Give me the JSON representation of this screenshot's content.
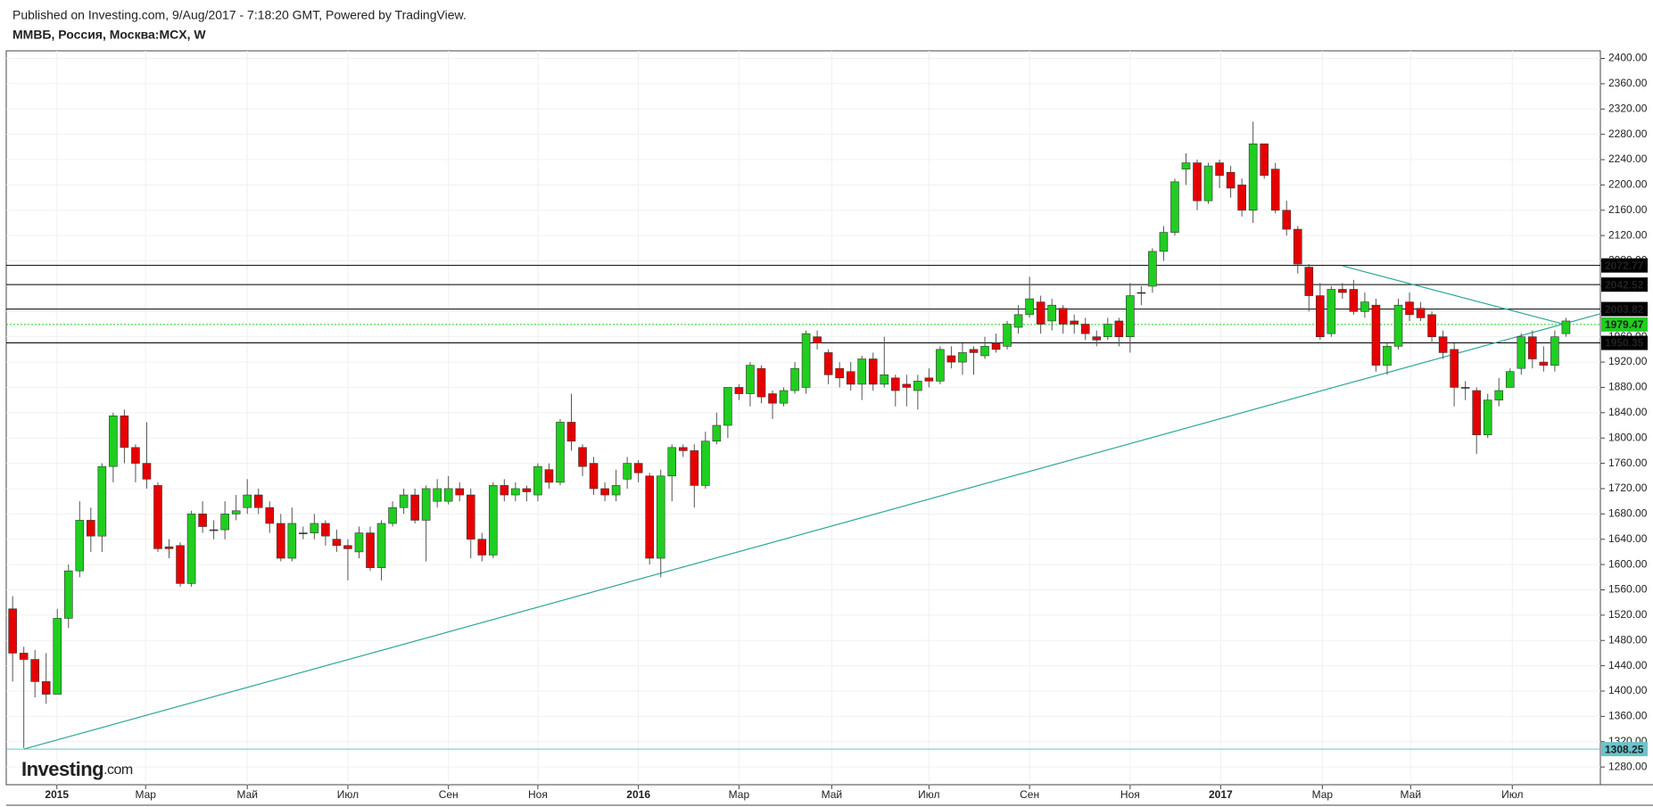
{
  "header": {
    "published": "Published on Investing.com, 9/Aug/2017 - 7:18:20 GMT, Powered by TradingView.",
    "symbol": "ММВБ, Россия, Москва:MCX, W"
  },
  "logo": {
    "name": "Investing",
    "suffix": ".com"
  },
  "chart_data": {
    "type": "candlestick",
    "up_color": "#1fce1f",
    "down_color": "#e60000",
    "grid": true,
    "open": [
      1530,
      1460,
      1450,
      1415,
      1395,
      1515,
      1590,
      1670,
      1645,
      1755,
      1835,
      1785,
      1760,
      1725,
      1628,
      1630,
      1570,
      1680,
      1655,
      1655,
      1680,
      1690,
      1710,
      1690,
      1665,
      1610,
      1650,
      1650,
      1665,
      1640,
      1630,
      1620,
      1650,
      1595,
      1665,
      1690,
      1710,
      1670,
      1700,
      1700,
      1720,
      1710,
      1640,
      1615,
      1725,
      1710,
      1720,
      1710,
      1750,
      1730,
      1825,
      1785,
      1760,
      1720,
      1710,
      1735,
      1760,
      1740,
      1610,
      1740,
      1785,
      1780,
      1725,
      1795,
      1820,
      1880,
      1870,
      1910,
      1870,
      1855,
      1875,
      1880,
      1960,
      1935,
      1910,
      1905,
      1885,
      1925,
      1885,
      1895,
      1885,
      1875,
      1895,
      1890,
      1930,
      1920,
      1940,
      1930,
      1950,
      1945,
      1975,
      1995,
      2015,
      1985,
      2005,
      1985,
      1980,
      1960,
      1960,
      1985,
      1960,
      2030,
      2040,
      2095,
      2125,
      2225,
      2235,
      2175,
      2235,
      2220,
      2200,
      2160,
      2265,
      2225,
      2160,
      2130,
      2070,
      2025,
      1965,
      2035,
      2035,
      2000,
      2010,
      1915,
      1945,
      2015,
      2005,
      1995,
      1960,
      1940,
      1880,
      1875,
      1805,
      1860,
      1880,
      1910,
      1960,
      1920,
      1915,
      1965
    ],
    "high": [
      1550,
      1470,
      1465,
      1460,
      1530,
      1600,
      1700,
      1690,
      1760,
      1840,
      1845,
      1790,
      1825,
      1730,
      1640,
      1635,
      1685,
      1700,
      1670,
      1700,
      1710,
      1735,
      1720,
      1700,
      1680,
      1690,
      1660,
      1680,
      1670,
      1655,
      1640,
      1660,
      1660,
      1670,
      1700,
      1720,
      1720,
      1725,
      1735,
      1740,
      1730,
      1720,
      1650,
      1730,
      1735,
      1730,
      1725,
      1760,
      1760,
      1830,
      1870,
      1790,
      1770,
      1730,
      1750,
      1770,
      1765,
      1745,
      1750,
      1790,
      1790,
      1790,
      1810,
      1840,
      1880,
      1885,
      1920,
      1915,
      1875,
      1880,
      1920,
      1970,
      1970,
      1940,
      1920,
      1920,
      1930,
      1935,
      1960,
      1900,
      1900,
      1900,
      1910,
      1945,
      1945,
      1950,
      1945,
      1960,
      1965,
      1985,
      2010,
      2055,
      2025,
      2020,
      2010,
      1995,
      1990,
      1970,
      1990,
      1990,
      2045,
      2040,
      2100,
      2135,
      2210,
      2250,
      2240,
      2235,
      2240,
      2230,
      2210,
      2300,
      2265,
      2235,
      2175,
      2135,
      2075,
      2045,
      2040,
      2045,
      2050,
      2030,
      2020,
      1950,
      2020,
      2030,
      2015,
      2000,
      1970,
      1950,
      1890,
      1880,
      1870,
      1895,
      1910,
      1965,
      1970,
      1945,
      1970,
      1990
    ],
    "low": [
      1415,
      1310,
      1390,
      1380,
      1395,
      1500,
      1580,
      1620,
      1620,
      1730,
      1760,
      1730,
      1720,
      1620,
      1610,
      1565,
      1565,
      1650,
      1640,
      1640,
      1670,
      1680,
      1680,
      1650,
      1605,
      1605,
      1640,
      1640,
      1630,
      1620,
      1575,
      1610,
      1590,
      1575,
      1660,
      1680,
      1665,
      1605,
      1690,
      1695,
      1700,
      1610,
      1605,
      1610,
      1700,
      1700,
      1700,
      1700,
      1720,
      1725,
      1780,
      1740,
      1710,
      1700,
      1700,
      1720,
      1730,
      1600,
      1580,
      1700,
      1770,
      1690,
      1720,
      1790,
      1800,
      1860,
      1850,
      1855,
      1830,
      1850,
      1870,
      1870,
      1940,
      1885,
      1880,
      1875,
      1860,
      1875,
      1880,
      1850,
      1850,
      1845,
      1880,
      1885,
      1910,
      1900,
      1900,
      1925,
      1935,
      1940,
      1965,
      1990,
      1965,
      1970,
      1965,
      1965,
      1955,
      1945,
      1955,
      1945,
      1935,
      2010,
      2030,
      2080,
      2120,
      2200,
      2160,
      2170,
      2195,
      2180,
      2150,
      2140,
      2210,
      2155,
      2120,
      2060,
      2000,
      1955,
      1960,
      2020,
      1995,
      1990,
      1905,
      1900,
      1940,
      1985,
      1985,
      1950,
      1925,
      1850,
      1860,
      1775,
      1800,
      1850,
      1880,
      1900,
      1910,
      1905,
      1905,
      1960
    ],
    "close": [
      1460,
      1450,
      1415,
      1395,
      1515,
      1590,
      1670,
      1645,
      1755,
      1835,
      1785,
      1760,
      1735,
      1625,
      1625,
      1570,
      1680,
      1660,
      1655,
      1680,
      1685,
      1710,
      1690,
      1665,
      1610,
      1665,
      1650,
      1665,
      1645,
      1630,
      1625,
      1650,
      1595,
      1665,
      1690,
      1710,
      1670,
      1720,
      1720,
      1720,
      1710,
      1640,
      1615,
      1725,
      1710,
      1720,
      1715,
      1755,
      1730,
      1825,
      1795,
      1755,
      1720,
      1710,
      1725,
      1760,
      1745,
      1610,
      1740,
      1785,
      1780,
      1725,
      1795,
      1820,
      1880,
      1870,
      1915,
      1865,
      1855,
      1875,
      1910,
      1965,
      1950,
      1900,
      1895,
      1885,
      1925,
      1885,
      1900,
      1875,
      1880,
      1890,
      1890,
      1940,
      1920,
      1935,
      1935,
      1945,
      1940,
      1980,
      1995,
      2020,
      1980,
      2010,
      1980,
      1980,
      1965,
      1955,
      1980,
      1960,
      2025,
      2030,
      2095,
      2125,
      2205,
      2235,
      2175,
      2230,
      2215,
      2195,
      2160,
      2265,
      2215,
      2160,
      2130,
      2075,
      2025,
      1960,
      2035,
      2030,
      2000,
      2015,
      1915,
      1945,
      2010,
      1995,
      1990,
      1960,
      1935,
      1880,
      1880,
      1805,
      1860,
      1875,
      1905,
      1960,
      1925,
      1915,
      1960,
      1985
    ],
    "xlim": [
      -0.57,
      142.08
    ],
    "xticks": [
      {
        "value": 3.96,
        "label": "2015"
      },
      {
        "value": 11.9,
        "label": "Мар"
      },
      {
        "value": 21,
        "label": "Май"
      },
      {
        "value": 30,
        "label": "Июл"
      },
      {
        "value": 39,
        "label": "Сен"
      },
      {
        "value": 47,
        "label": "Ноя"
      },
      {
        "value": 56,
        "label": "2016"
      },
      {
        "value": 65,
        "label": "Мар"
      },
      {
        "value": 73.3,
        "label": "Май"
      },
      {
        "value": 82,
        "label": "Июл"
      },
      {
        "value": 91,
        "label": "Сен"
      },
      {
        "value": 100,
        "label": "Ноя"
      },
      {
        "value": 108.1,
        "label": "2017"
      },
      {
        "value": 117.2,
        "label": "Мар"
      },
      {
        "value": 125.1,
        "label": "Май"
      },
      {
        "value": 134.2,
        "label": "Июл"
      }
    ],
    "ylim": [
      1252,
      2412
    ],
    "yticks": [
      {
        "value": 1280,
        "label": "1280.00"
      },
      {
        "value": 1320,
        "label": "1320.00"
      },
      {
        "value": 1360,
        "label": "1360.00"
      },
      {
        "value": 1400,
        "label": "1400.00"
      },
      {
        "value": 1440,
        "label": "1440.00"
      },
      {
        "value": 1480,
        "label": "1480.00"
      },
      {
        "value": 1520,
        "label": "1520.00"
      },
      {
        "value": 1560,
        "label": "1560.00"
      },
      {
        "value": 1600,
        "label": "1600.00"
      },
      {
        "value": 1640,
        "label": "1640.00"
      },
      {
        "value": 1680,
        "label": "1680.00"
      },
      {
        "value": 1720,
        "label": "1720.00"
      },
      {
        "value": 1760,
        "label": "1760.00"
      },
      {
        "value": 1800,
        "label": "1800.00"
      },
      {
        "value": 1840,
        "label": "1840.00"
      },
      {
        "value": 1880,
        "label": "1880.00"
      },
      {
        "value": 1920,
        "label": "1920.00"
      },
      {
        "value": 1960,
        "label": "1960.00"
      },
      {
        "value": 2000,
        "label": "2000.00"
      },
      {
        "value": 2040,
        "label": "2040.00"
      },
      {
        "value": 2080,
        "label": "2080.00"
      },
      {
        "value": 2120,
        "label": "2120.00"
      },
      {
        "value": 2160,
        "label": "2160.00"
      },
      {
        "value": 2200,
        "label": "2200.00"
      },
      {
        "value": 2240,
        "label": "2240.00"
      },
      {
        "value": 2280,
        "label": "2280.00"
      },
      {
        "value": 2320,
        "label": "2320.00"
      },
      {
        "value": 2360,
        "label": "2360.00"
      },
      {
        "value": 2400,
        "label": "2400.00"
      }
    ],
    "levels": [
      {
        "value": 2072.77,
        "color": "#000000"
      },
      {
        "value": 2042.52,
        "color": "#000000"
      },
      {
        "value": 2003.82,
        "color": "#000000"
      },
      {
        "value": 1950.35,
        "color": "#000000"
      },
      {
        "value": 1979.47,
        "color": "#1fce1f",
        "dotted": true
      },
      {
        "value": 1308.25,
        "color": "#6cc3c9"
      }
    ],
    "trendlines": [
      {
        "points": [
          [
            1,
            1308.25
          ],
          [
            142,
            1996
          ]
        ],
        "color": "#2ea79a"
      },
      {
        "points": [
          [
            119,
            2072
          ],
          [
            139,
            1979
          ]
        ],
        "color": "#2ea79a"
      }
    ]
  }
}
